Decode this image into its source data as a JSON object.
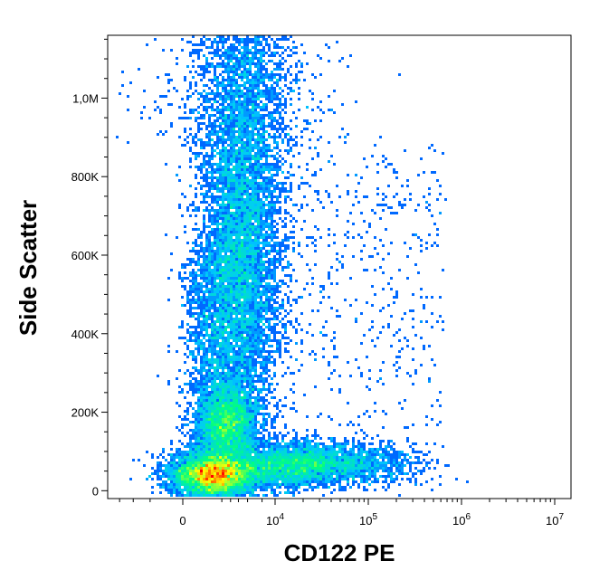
{
  "chart_data": {
    "type": "scatter",
    "subtype": "density (flow cytometry dot plot)",
    "xlabel": "CD122 PE",
    "ylabel": "Side Scatter",
    "x_scale": "biexponential",
    "y_scale": "linear",
    "xlim": [
      -800,
      10000000
    ],
    "ylim": [
      -20000,
      1160000
    ],
    "x_ticks": [
      {
        "value": 0,
        "base": "0",
        "exp": ""
      },
      {
        "value": 10000,
        "base": "10",
        "exp": "4"
      },
      {
        "value": 100000,
        "base": "10",
        "exp": "5"
      },
      {
        "value": 1000000,
        "base": "10",
        "exp": "6"
      },
      {
        "value": 10000000,
        "base": "10",
        "exp": "7"
      }
    ],
    "y_ticks": [
      {
        "value": 0,
        "label": "0"
      },
      {
        "value": 200000,
        "label": "200K"
      },
      {
        "value": 400000,
        "label": "400K"
      },
      {
        "value": 600000,
        "label": "600K"
      },
      {
        "value": 800000,
        "label": "800K"
      },
      {
        "value": 1000000,
        "label": "1,0M"
      }
    ],
    "populations": [
      {
        "x_center": 50,
        "y_center": 40000,
        "relative_density": 1.0
      },
      {
        "x_center": 400,
        "y_center": 170000,
        "relative_density": 0.65
      },
      {
        "x_center": 1200,
        "y_center": 600000,
        "relative_density": 0.6
      },
      {
        "x_center": 30000,
        "y_center": 70000,
        "relative_density": 0.45
      }
    ],
    "colormap": [
      "#0000ff",
      "#00c8ff",
      "#00ff80",
      "#ffff00",
      "#ff0000"
    ],
    "grid": false,
    "legend": false
  }
}
